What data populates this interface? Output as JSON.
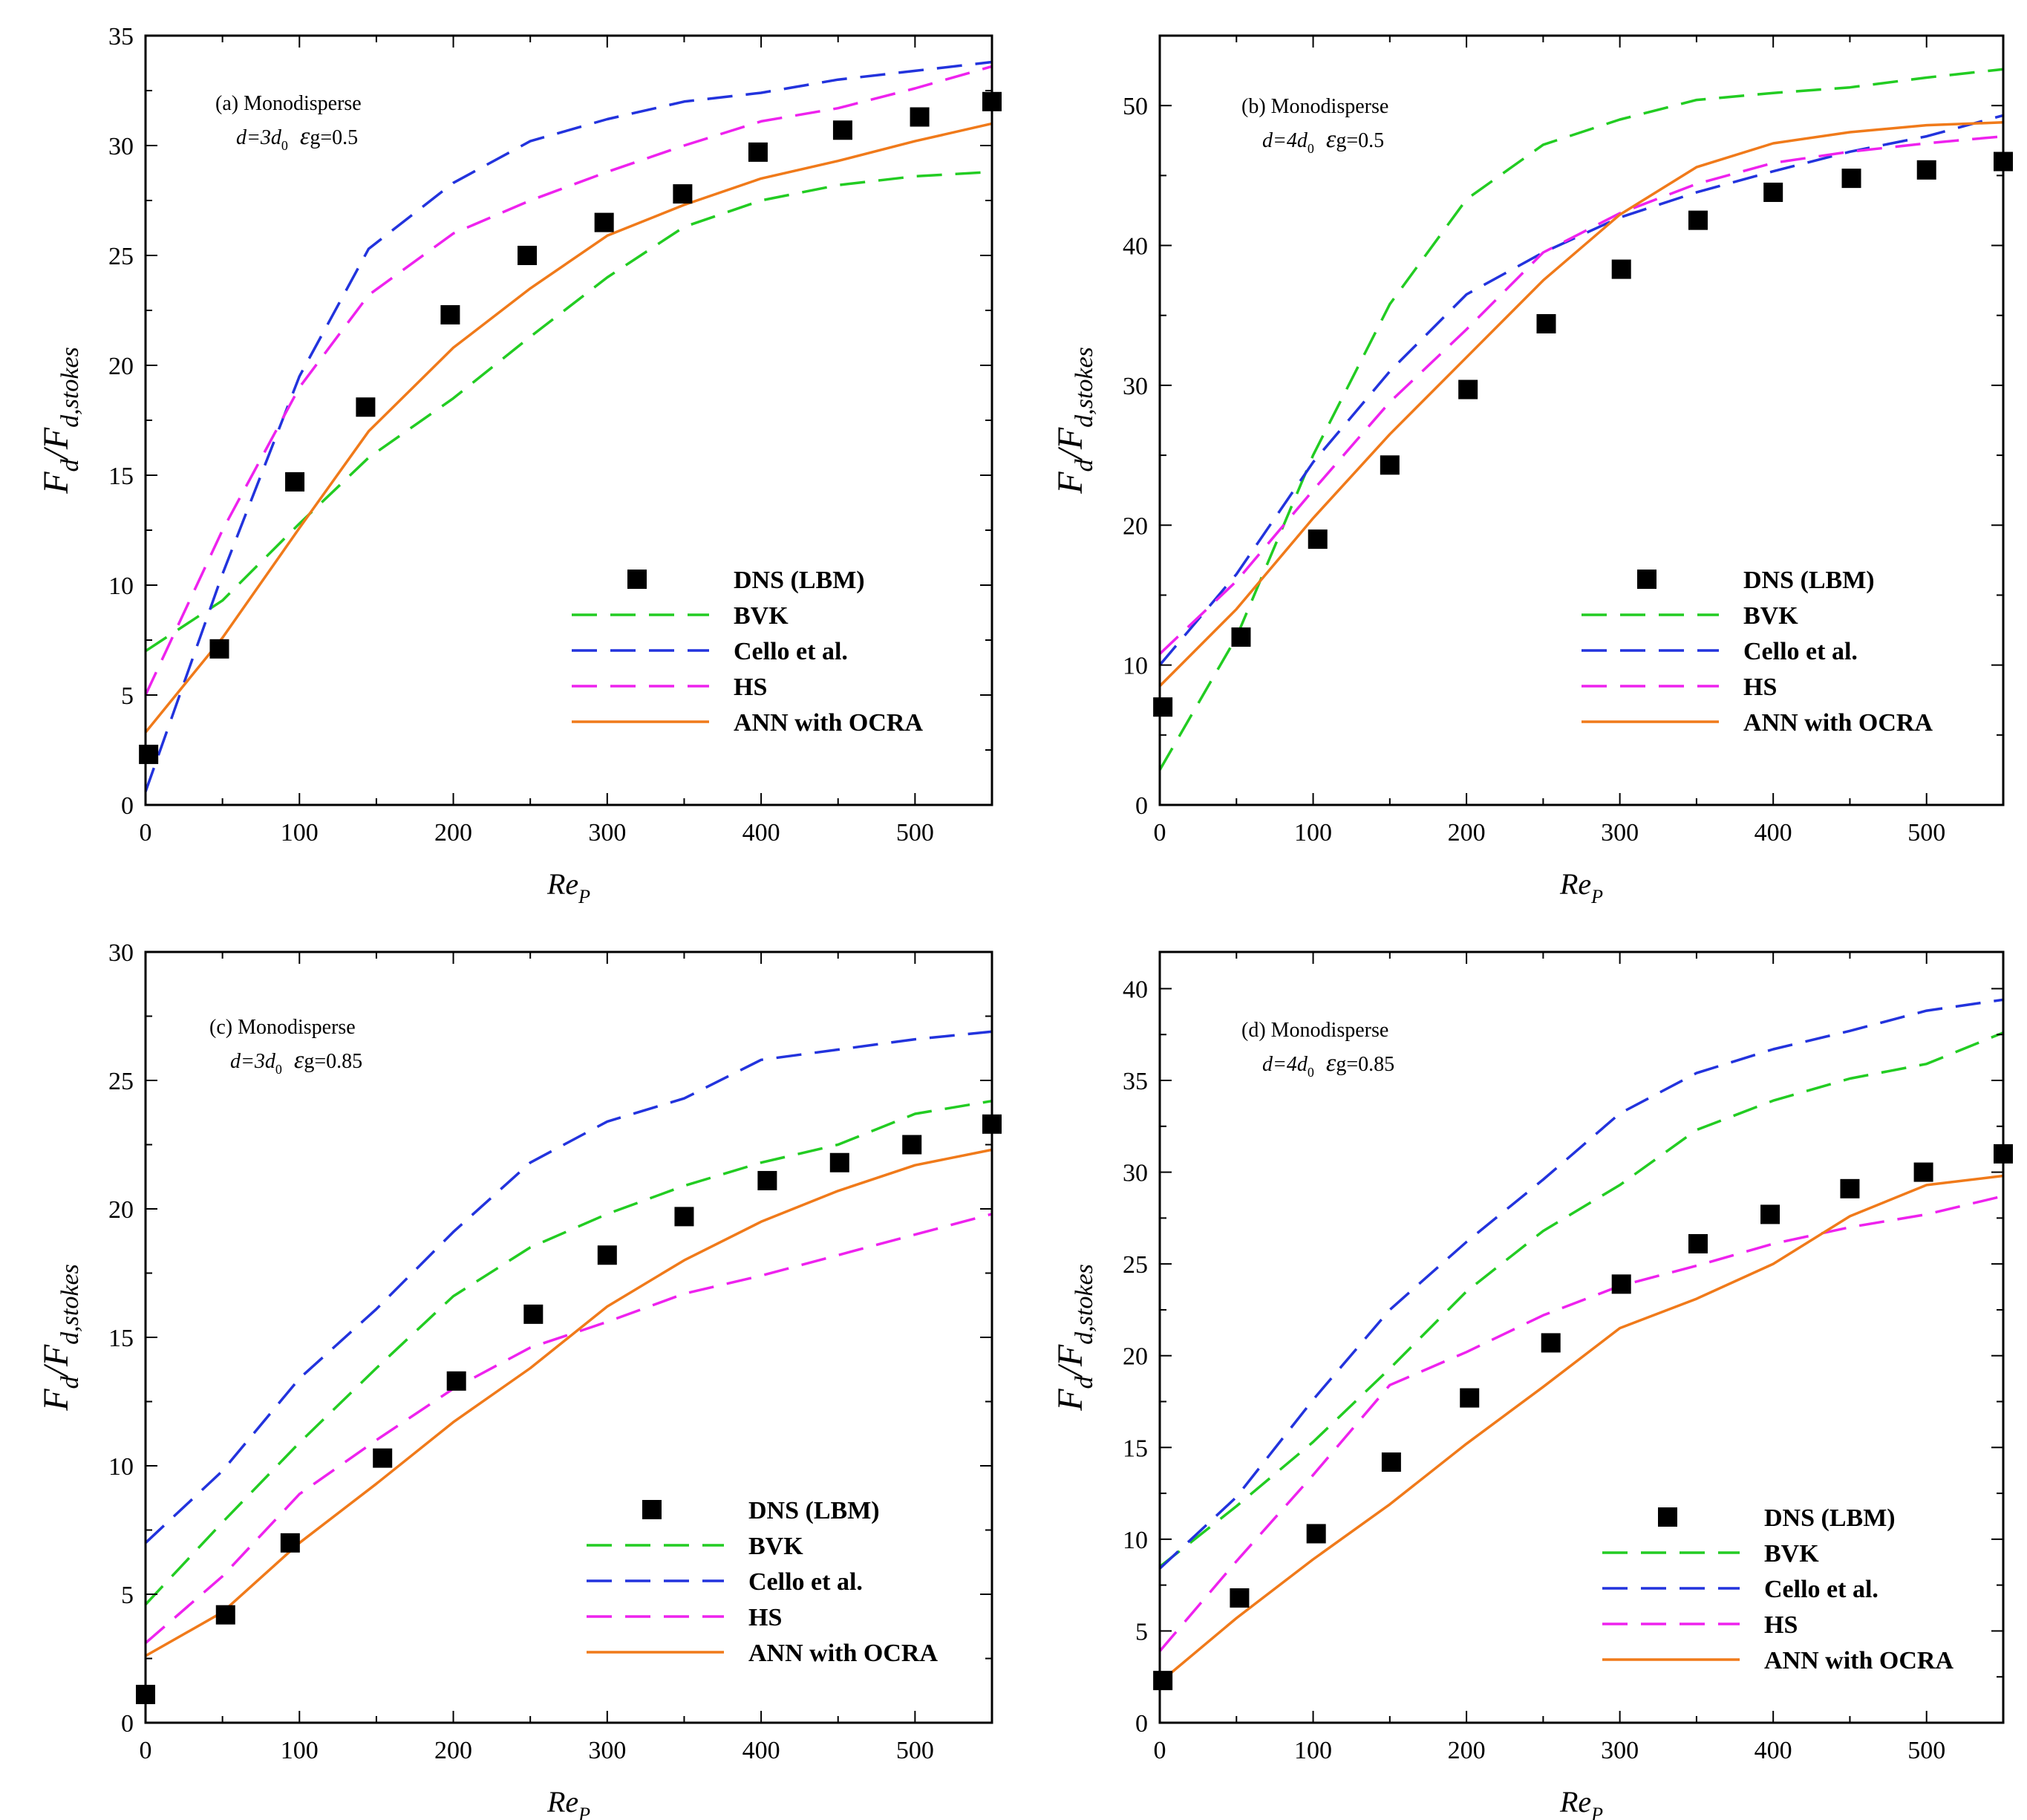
{
  "colors": {
    "BVK": "#22cc22",
    "Cello et al.": "#2233dd",
    "HS": "#ee22ee",
    "ANN with OCRA": "#f07a1a",
    "DNS (LBM)": "#000000"
  },
  "chart_data": [
    {
      "id": "a",
      "type": "line",
      "annotation": "(a) Monodisperse",
      "cond_d": "d=3d",
      "cond_sub0": "0",
      "cond_eps": "ε",
      "cond_epsval": "g=0.5",
      "xlabel": "Re",
      "xlabel_sub": "P",
      "ylabel": "F",
      "ylabel_sub1": "d",
      "ylabel_mid": "/F",
      "ylabel_sub2": "d,stokes",
      "xlim": [
        0,
        550
      ],
      "ylim": [
        0,
        35
      ],
      "xticks": [
        0,
        100,
        200,
        300,
        400,
        500
      ],
      "yticks": [
        0,
        5,
        10,
        15,
        20,
        25,
        30,
        35
      ],
      "series": [
        {
          "name": "DNS (LBM)",
          "style": "markers",
          "x": [
            2,
            48,
            97,
            143,
            198,
            248,
            298,
            349,
            398,
            453,
            503,
            550
          ],
          "y": [
            2.3,
            7.1,
            14.7,
            18.1,
            22.3,
            25.0,
            26.5,
            27.8,
            29.7,
            30.7,
            31.3,
            32.0
          ]
        },
        {
          "name": "BVK",
          "style": "dashed",
          "x": [
            0,
            50,
            100,
            145,
            200,
            250,
            300,
            350,
            400,
            450,
            500,
            550
          ],
          "y": [
            7.0,
            9.3,
            12.8,
            15.8,
            18.5,
            21.3,
            24.0,
            26.3,
            27.5,
            28.2,
            28.6,
            28.8
          ]
        },
        {
          "name": "Cello et al.",
          "style": "dashed",
          "x": [
            0,
            50,
            100,
            145,
            200,
            250,
            300,
            350,
            400,
            450,
            500,
            550
          ],
          "y": [
            0.6,
            10.5,
            19.5,
            25.3,
            28.3,
            30.2,
            31.2,
            32.0,
            32.4,
            33.0,
            33.4,
            33.8
          ]
        },
        {
          "name": "HS",
          "style": "dashed",
          "x": [
            0,
            50,
            100,
            145,
            200,
            250,
            300,
            350,
            400,
            450,
            500,
            550
          ],
          "y": [
            5.0,
            12.5,
            19.0,
            23.2,
            26.0,
            27.5,
            28.8,
            30.0,
            31.1,
            31.7,
            32.6,
            33.6
          ]
        },
        {
          "name": "ANN with OCRA",
          "style": "solid",
          "x": [
            0,
            50,
            100,
            145,
            200,
            250,
            300,
            350,
            400,
            450,
            500,
            550
          ],
          "y": [
            3.3,
            7.6,
            12.6,
            17.0,
            20.8,
            23.5,
            25.9,
            27.3,
            28.5,
            29.3,
            30.2,
            31.0
          ]
        }
      ],
      "legend": [
        "DNS (LBM)",
        "BVK",
        "Cello et al.",
        "HS",
        "ANN with OCRA"
      ]
    },
    {
      "id": "b",
      "type": "line",
      "annotation": "(b) Monodisperse",
      "cond_d": "d=4d",
      "cond_sub0": "0",
      "cond_eps": "ε",
      "cond_epsval": "g=0.5",
      "xlabel": "Re",
      "xlabel_sub": "P",
      "ylabel": "F",
      "ylabel_sub1": "d",
      "ylabel_mid": "/F",
      "ylabel_sub2": "d,stokes",
      "xlim": [
        0,
        550
      ],
      "ylim": [
        0,
        55
      ],
      "xticks": [
        0,
        100,
        200,
        300,
        400,
        500
      ],
      "yticks": [
        0,
        10,
        20,
        30,
        40,
        50
      ],
      "series": [
        {
          "name": "DNS (LBM)",
          "style": "markers",
          "x": [
            2,
            53,
            103,
            150,
            201,
            252,
            301,
            351,
            400,
            451,
            500,
            550
          ],
          "y": [
            7.0,
            12.0,
            19.0,
            24.3,
            29.7,
            34.4,
            38.3,
            41.8,
            43.8,
            44.8,
            45.4,
            46.0
          ]
        },
        {
          "name": "BVK",
          "style": "dashed",
          "x": [
            0,
            50,
            100,
            150,
            200,
            250,
            300,
            350,
            400,
            450,
            500,
            550
          ],
          "y": [
            2.5,
            12.0,
            25.0,
            35.8,
            43.3,
            47.2,
            49.0,
            50.4,
            50.9,
            51.3,
            52.0,
            52.6
          ]
        },
        {
          "name": "Cello et al.",
          "style": "dashed",
          "x": [
            0,
            50,
            100,
            150,
            200,
            250,
            300,
            350,
            400,
            450,
            500,
            550
          ],
          "y": [
            10.0,
            16.5,
            24.5,
            31.0,
            36.5,
            39.5,
            42.0,
            43.8,
            45.3,
            46.7,
            47.8,
            49.3
          ]
        },
        {
          "name": "HS",
          "style": "dashed",
          "x": [
            0,
            50,
            100,
            150,
            200,
            250,
            300,
            350,
            400,
            450,
            500,
            550
          ],
          "y": [
            10.8,
            16.0,
            22.5,
            28.8,
            34.0,
            39.5,
            42.3,
            44.4,
            45.9,
            46.7,
            47.3,
            47.8
          ]
        },
        {
          "name": "ANN with OCRA",
          "style": "solid",
          "x": [
            0,
            50,
            100,
            150,
            200,
            250,
            300,
            350,
            400,
            450,
            500,
            550
          ],
          "y": [
            8.5,
            14.0,
            20.5,
            26.5,
            32.0,
            37.5,
            42.2,
            45.6,
            47.3,
            48.1,
            48.6,
            48.8
          ]
        }
      ],
      "legend": [
        "DNS (LBM)",
        "BVK",
        "Cello et al.",
        "HS",
        "ANN with OCRA"
      ]
    },
    {
      "id": "c",
      "type": "line",
      "annotation": "(c) Monodisperse",
      "cond_d": "d=3d",
      "cond_sub0": "0",
      "cond_eps": "ε",
      "cond_epsval": "g=0.85",
      "xlabel": "Re",
      "xlabel_sub": "P",
      "ylabel": "F",
      "ylabel_sub1": "d",
      "ylabel_mid": "/F",
      "ylabel_sub2": "d,stokes",
      "xlim": [
        0,
        550
      ],
      "ylim": [
        0,
        30
      ],
      "xticks": [
        0,
        100,
        200,
        300,
        400,
        500
      ],
      "yticks": [
        0,
        5,
        10,
        15,
        20,
        25,
        30
      ],
      "series": [
        {
          "name": "DNS (LBM)",
          "style": "markers",
          "x": [
            0,
            52,
            94,
            154,
            202,
            252,
            300,
            350,
            404,
            451,
            498,
            550
          ],
          "y": [
            1.1,
            4.2,
            7.0,
            10.3,
            13.3,
            15.9,
            18.2,
            19.7,
            21.1,
            21.8,
            22.5,
            23.3
          ]
        },
        {
          "name": "BVK",
          "style": "dashed",
          "x": [
            0,
            50,
            100,
            150,
            200,
            250,
            300,
            350,
            400,
            450,
            500,
            550
          ],
          "y": [
            4.6,
            7.8,
            10.9,
            13.8,
            16.6,
            18.5,
            19.8,
            20.9,
            21.8,
            22.5,
            23.7,
            24.2
          ]
        },
        {
          "name": "Cello et al.",
          "style": "dashed",
          "x": [
            0,
            50,
            100,
            150,
            200,
            250,
            300,
            350,
            400,
            450,
            500,
            550
          ],
          "y": [
            7.0,
            9.8,
            13.4,
            16.1,
            19.1,
            21.8,
            23.4,
            24.3,
            25.8,
            26.2,
            26.6,
            26.9
          ]
        },
        {
          "name": "HS",
          "style": "dashed",
          "x": [
            0,
            50,
            100,
            150,
            200,
            250,
            300,
            350,
            400,
            450,
            500,
            550
          ],
          "y": [
            3.1,
            5.7,
            8.9,
            11.0,
            13.0,
            14.6,
            15.6,
            16.7,
            17.4,
            18.2,
            19.0,
            19.8
          ]
        },
        {
          "name": "ANN with OCRA",
          "style": "solid",
          "x": [
            0,
            50,
            100,
            150,
            200,
            250,
            300,
            350,
            400,
            450,
            500,
            550
          ],
          "y": [
            2.6,
            4.3,
            7.0,
            9.3,
            11.7,
            13.8,
            16.2,
            18.0,
            19.5,
            20.7,
            21.7,
            22.3
          ]
        }
      ],
      "legend": [
        "DNS (LBM)",
        "BVK",
        "Cello et al.",
        "HS",
        "ANN with OCRA"
      ]
    },
    {
      "id": "d",
      "type": "line",
      "annotation": "(d) Monodisperse",
      "cond_d": "d=4d",
      "cond_sub0": "0",
      "cond_eps": "ε",
      "cond_epsval": "g=0.85",
      "xlabel": "Re",
      "xlabel_sub": "P",
      "ylabel": "F",
      "ylabel_sub1": "d",
      "ylabel_mid": "/F",
      "ylabel_sub2": "d,stokes",
      "xlim": [
        0,
        550
      ],
      "ylim": [
        0,
        42
      ],
      "xticks": [
        0,
        100,
        200,
        300,
        400,
        500
      ],
      "yticks": [
        0,
        5,
        10,
        15,
        20,
        25,
        30,
        35,
        40
      ],
      "series": [
        {
          "name": "DNS (LBM)",
          "style": "markers",
          "x": [
            2,
            52,
            102,
            151,
            202,
            255,
            301,
            351,
            398,
            450,
            498,
            550
          ],
          "y": [
            2.3,
            6.8,
            10.3,
            14.2,
            17.7,
            20.7,
            23.9,
            26.1,
            27.7,
            29.1,
            30.0,
            31.0
          ]
        },
        {
          "name": "BVK",
          "style": "dashed",
          "x": [
            0,
            50,
            100,
            150,
            200,
            250,
            300,
            350,
            400,
            450,
            500,
            550
          ],
          "y": [
            8.5,
            11.8,
            15.3,
            19.3,
            23.5,
            26.8,
            29.3,
            32.3,
            33.9,
            35.1,
            35.9,
            37.6
          ]
        },
        {
          "name": "Cello et al.",
          "style": "dashed",
          "x": [
            0,
            50,
            100,
            150,
            200,
            250,
            300,
            350,
            400,
            450,
            500,
            550
          ],
          "y": [
            8.4,
            12.3,
            17.6,
            22.5,
            26.2,
            29.6,
            33.2,
            35.4,
            36.7,
            37.7,
            38.8,
            39.4
          ]
        },
        {
          "name": "HS",
          "style": "dashed",
          "x": [
            0,
            50,
            100,
            150,
            200,
            250,
            300,
            350,
            400,
            450,
            500,
            550
          ],
          "y": [
            3.9,
            8.8,
            13.5,
            18.4,
            20.2,
            22.2,
            23.8,
            24.9,
            26.1,
            27.0,
            27.7,
            28.7
          ]
        },
        {
          "name": "ANN with OCRA",
          "style": "solid",
          "x": [
            0,
            50,
            100,
            150,
            200,
            250,
            300,
            350,
            400,
            450,
            500,
            550
          ],
          "y": [
            2.2,
            5.7,
            8.9,
            11.9,
            15.2,
            18.3,
            21.5,
            23.1,
            25.0,
            27.6,
            29.3,
            29.8
          ]
        }
      ],
      "legend": [
        "DNS (LBM)",
        "BVK",
        "Cello et al.",
        "HS",
        "ANN with OCRA"
      ]
    }
  ]
}
